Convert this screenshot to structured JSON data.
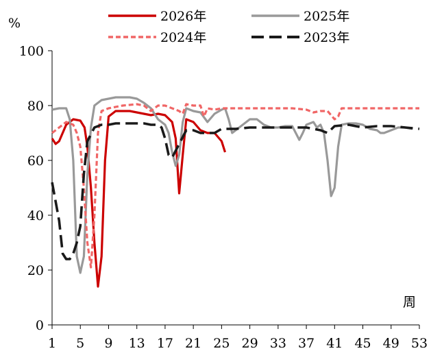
{
  "chart_data": {
    "type": "line",
    "ylabel": "%",
    "xlabel": "周",
    "ylim": [
      0,
      100
    ],
    "xlim": [
      1,
      53
    ],
    "yticks": [
      0,
      20,
      40,
      60,
      80,
      100
    ],
    "xticks": [
      1,
      5,
      9,
      13,
      17,
      21,
      25,
      29,
      33,
      37,
      41,
      45,
      49,
      53
    ],
    "grid": false,
    "legend": "top",
    "series": [
      {
        "name": "2026年",
        "color": "#cc0000",
        "dash": "solid",
        "points": [
          [
            1,
            68
          ],
          [
            1.5,
            66
          ],
          [
            2,
            67
          ],
          [
            3,
            73
          ],
          [
            4,
            75
          ],
          [
            5,
            74.5
          ],
          [
            5.6,
            72
          ],
          [
            6,
            65
          ],
          [
            6.5,
            50
          ],
          [
            7,
            30
          ],
          [
            7.5,
            14
          ],
          [
            8,
            25
          ],
          [
            8.5,
            60
          ],
          [
            9,
            76
          ],
          [
            10,
            78
          ],
          [
            12,
            78
          ],
          [
            14,
            77
          ],
          [
            15,
            76.5
          ],
          [
            16,
            77
          ],
          [
            17,
            76.5
          ],
          [
            18,
            74
          ],
          [
            18.5,
            68
          ],
          [
            19,
            48
          ],
          [
            19.5,
            62
          ],
          [
            20,
            75
          ],
          [
            21,
            74
          ],
          [
            22,
            71
          ],
          [
            23,
            70
          ],
          [
            24,
            70
          ],
          [
            25,
            67
          ],
          [
            25.5,
            63
          ]
        ]
      },
      {
        "name": "2025年",
        "color": "#999999",
        "dash": "solid",
        "points": [
          [
            1,
            78.5
          ],
          [
            2,
            79
          ],
          [
            3,
            79
          ],
          [
            3.5,
            75
          ],
          [
            4,
            60
          ],
          [
            4.5,
            25
          ],
          [
            5,
            19
          ],
          [
            5.5,
            25
          ],
          [
            6,
            55
          ],
          [
            6.5,
            72
          ],
          [
            7,
            80
          ],
          [
            8,
            82
          ],
          [
            9,
            82.5
          ],
          [
            10,
            83
          ],
          [
            11,
            83
          ],
          [
            12,
            83
          ],
          [
            13,
            82.5
          ],
          [
            14,
            81
          ],
          [
            15,
            79
          ],
          [
            16,
            75
          ],
          [
            17,
            73
          ],
          [
            17.5,
            70
          ],
          [
            18,
            63
          ],
          [
            18.5,
            58
          ],
          [
            19,
            62
          ],
          [
            19.5,
            74
          ],
          [
            20,
            79
          ],
          [
            21,
            78
          ],
          [
            22,
            77.5
          ],
          [
            23,
            74
          ],
          [
            24,
            77
          ],
          [
            25,
            78.5
          ],
          [
            25.5,
            79
          ],
          [
            26,
            75
          ],
          [
            26.5,
            70
          ],
          [
            27,
            71
          ],
          [
            28,
            73
          ],
          [
            29,
            75
          ],
          [
            30,
            75
          ],
          [
            31,
            73
          ],
          [
            32,
            72
          ],
          [
            33,
            72
          ],
          [
            34,
            72.5
          ],
          [
            35,
            72.5
          ],
          [
            36,
            67.5
          ],
          [
            36.5,
            70
          ],
          [
            37,
            73
          ],
          [
            38,
            74
          ],
          [
            38.5,
            72
          ],
          [
            39,
            73
          ],
          [
            39.5,
            70
          ],
          [
            40,
            60
          ],
          [
            40.5,
            47
          ],
          [
            41,
            50
          ],
          [
            41.5,
            65
          ],
          [
            42,
            73
          ],
          [
            43,
            73.5
          ],
          [
            44,
            73.5
          ],
          [
            45,
            73
          ],
          [
            46,
            71.5
          ],
          [
            47,
            71
          ],
          [
            47.5,
            70
          ],
          [
            48,
            70
          ],
          [
            49,
            71
          ],
          [
            50,
            72
          ],
          [
            51,
            72
          ],
          [
            52,
            71.5
          ]
        ]
      },
      {
        "name": "2024年",
        "color": "#f06666",
        "dash": "short",
        "points": [
          [
            1,
            70
          ],
          [
            2,
            72
          ],
          [
            3,
            74
          ],
          [
            4,
            73
          ],
          [
            4.5,
            70
          ],
          [
            5,
            65
          ],
          [
            5.5,
            50
          ],
          [
            6,
            30
          ],
          [
            6.5,
            21
          ],
          [
            7,
            40
          ],
          [
            7.5,
            70
          ],
          [
            8,
            78
          ],
          [
            9,
            79
          ],
          [
            11,
            80
          ],
          [
            13,
            80.5
          ],
          [
            14,
            80
          ],
          [
            15,
            78
          ],
          [
            16,
            80
          ],
          [
            17,
            80
          ],
          [
            18,
            79
          ],
          [
            19,
            78
          ],
          [
            19.5,
            77
          ],
          [
            20,
            80.5
          ],
          [
            21,
            80
          ],
          [
            22,
            80
          ],
          [
            22.5,
            76
          ],
          [
            23,
            79
          ],
          [
            24,
            78.5
          ],
          [
            25,
            79
          ],
          [
            27,
            79
          ],
          [
            29,
            79
          ],
          [
            31,
            79
          ],
          [
            33,
            79
          ],
          [
            35,
            79
          ],
          [
            37,
            78.5
          ],
          [
            38,
            77.5
          ],
          [
            39,
            78
          ],
          [
            40,
            78
          ],
          [
            41,
            75
          ],
          [
            41.5,
            76
          ],
          [
            42,
            79
          ],
          [
            43,
            79
          ],
          [
            45,
            79
          ],
          [
            47,
            79
          ],
          [
            49,
            79
          ],
          [
            51,
            79
          ],
          [
            53,
            79
          ]
        ]
      },
      {
        "name": "2023年",
        "color": "#1a1a1a",
        "dash": "long",
        "points": [
          [
            1,
            52
          ],
          [
            1.5,
            45
          ],
          [
            2,
            38
          ],
          [
            2.5,
            26
          ],
          [
            3,
            24
          ],
          [
            3.5,
            24
          ],
          [
            4,
            26
          ],
          [
            4.5,
            30
          ],
          [
            5,
            36
          ],
          [
            5.5,
            55
          ],
          [
            6,
            67
          ],
          [
            7,
            72
          ],
          [
            8,
            73
          ],
          [
            9,
            73
          ],
          [
            10,
            73.5
          ],
          [
            12,
            73.5
          ],
          [
            13,
            73.5
          ],
          [
            14,
            73.5
          ],
          [
            15,
            73
          ],
          [
            16,
            73
          ],
          [
            16.5,
            72
          ],
          [
            17,
            68
          ],
          [
            17.5,
            62
          ],
          [
            18,
            61
          ],
          [
            19,
            66
          ],
          [
            20,
            71
          ],
          [
            21,
            71
          ],
          [
            22,
            70
          ],
          [
            24,
            70
          ],
          [
            25,
            71.5
          ],
          [
            27,
            71.5
          ],
          [
            29,
            72
          ],
          [
            31,
            72
          ],
          [
            33,
            72
          ],
          [
            35,
            72
          ],
          [
            37,
            72
          ],
          [
            38,
            71.5
          ],
          [
            39,
            71
          ],
          [
            40,
            70
          ],
          [
            41,
            72.5
          ],
          [
            43,
            73
          ],
          [
            45,
            72
          ],
          [
            47,
            72.5
          ],
          [
            49,
            72.5
          ],
          [
            51,
            72
          ],
          [
            53,
            71.5
          ]
        ]
      }
    ]
  }
}
